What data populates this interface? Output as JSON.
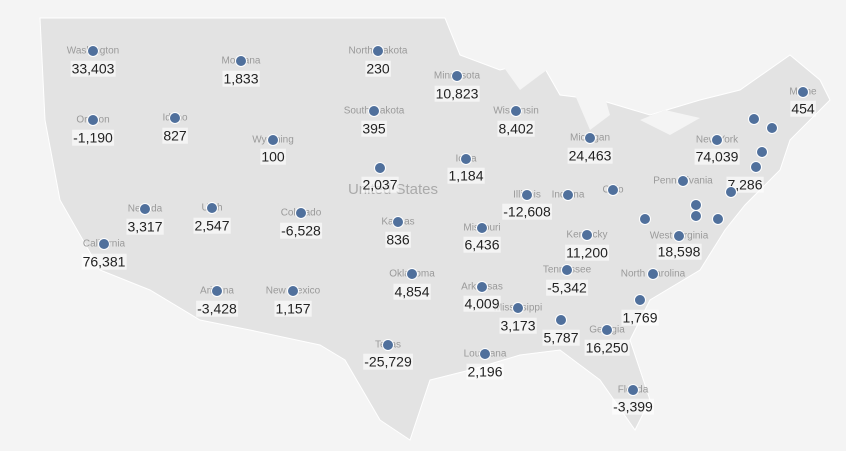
{
  "map": {
    "country_label": "United States",
    "points": [
      {
        "name": "Washington",
        "value": 33403,
        "value_label": "33,403"
      },
      {
        "name": "Oregon",
        "value": -1190,
        "value_label": "-1,190"
      },
      {
        "name": "California",
        "value": 76381,
        "value_label": "76,381"
      },
      {
        "name": "Nevada",
        "value": 3317,
        "value_label": "3,317"
      },
      {
        "name": "Idaho",
        "value": 827,
        "value_label": "827"
      },
      {
        "name": "Montana",
        "value": 1833,
        "value_label": "1,833"
      },
      {
        "name": "Wyoming",
        "value": 100,
        "value_label": "100"
      },
      {
        "name": "Utah",
        "value": 2547,
        "value_label": "2,547"
      },
      {
        "name": "Arizona",
        "value": -3428,
        "value_label": "-3,428"
      },
      {
        "name": "Colorado",
        "value": -6528,
        "value_label": "-6,528"
      },
      {
        "name": "New Mexico",
        "value": 1157,
        "value_label": "1,157"
      },
      {
        "name": "North Dakota",
        "value": 230,
        "value_label": "230"
      },
      {
        "name": "South Dakota",
        "value": 395,
        "value_label": "395"
      },
      {
        "value": 2037,
        "value_label": "2,037"
      },
      {
        "name": "Kansas",
        "value": 836,
        "value_label": "836"
      },
      {
        "name": "Oklahoma",
        "value": 4854,
        "value_label": "4,854"
      },
      {
        "name": "Texas",
        "value": -25729,
        "value_label": "-25,729"
      },
      {
        "name": "Minnesota",
        "value": 10823,
        "value_label": "10,823"
      },
      {
        "name": "Iowa",
        "value": 1184,
        "value_label": "1,184"
      },
      {
        "name": "Missouri",
        "value": 6436,
        "value_label": "6,436"
      },
      {
        "name": "Arkansas",
        "value": 4009,
        "value_label": "4,009"
      },
      {
        "name": "Louisiana",
        "value": 2196,
        "value_label": "2,196"
      },
      {
        "name": "Wisconsin",
        "value": 8402,
        "value_label": "8,402"
      },
      {
        "name": "Illinois",
        "value": -12608,
        "value_label": "-12,608"
      },
      {
        "name": "Mississippi",
        "value": 3173,
        "value_label": "3,173"
      },
      {
        "name": "Michigan",
        "value": 24463,
        "value_label": "24,463"
      },
      {
        "name": "Indiana",
        "value": null
      },
      {
        "name": "Ohio",
        "value": null
      },
      {
        "name": "Kentucky",
        "value": 11200,
        "value_label": "11,200"
      },
      {
        "name": "Tennessee",
        "value": -5342,
        "value_label": "-5,342"
      },
      {
        "value": 5787,
        "value_label": "5,787"
      },
      {
        "name": "Georgia",
        "value": 16250,
        "value_label": "16,250"
      },
      {
        "name": "Florida",
        "value": -3399,
        "value_label": "-3,399"
      },
      {
        "value": 1769,
        "value_label": "1,769"
      },
      {
        "name": "North Carolina",
        "value": null
      },
      {
        "name": "West Virginia",
        "value": 18598,
        "value_label": "18,598"
      },
      {
        "name": "Pennsylvania",
        "value": null
      },
      {
        "name": "New York",
        "value": 74039,
        "value_label": "74,039"
      },
      {
        "value": 7286,
        "value_label": "7,286"
      },
      {
        "name": "Maine",
        "value": 454,
        "value_label": "454"
      },
      {
        "value": null
      },
      {
        "value": null
      },
      {
        "value": null
      },
      {
        "value": null
      },
      {
        "value": null
      },
      {
        "value": null
      },
      {
        "value": null
      },
      {
        "value": null
      }
    ]
  }
}
